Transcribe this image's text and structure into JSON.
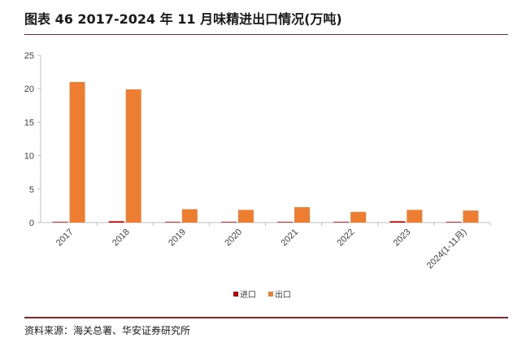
{
  "title": "图表 46   2017-2024 年 11 月味精进出口情况(万吨)",
  "source": "资料来源：海关总署、华安证券研究所",
  "colors": {
    "import": "#c00000",
    "export": "#ed7d31",
    "axis": "#bfbfbf",
    "rule": "#7a2a2a"
  },
  "chart_data": {
    "type": "bar",
    "categories": [
      "2017",
      "2018",
      "2019",
      "2020",
      "2021",
      "2022",
      "2023",
      "2024(1-11月)"
    ],
    "series": [
      {
        "name": "进口",
        "values": [
          0.1,
          0.2,
          0.1,
          0.1,
          0.1,
          0.1,
          0.2,
          0.1
        ]
      },
      {
        "name": "出口",
        "values": [
          21.0,
          19.9,
          2.0,
          1.9,
          2.3,
          1.6,
          1.9,
          1.8
        ]
      }
    ],
    "ylim": [
      0,
      25
    ],
    "yticks": [
      0,
      5,
      10,
      15,
      20,
      25
    ],
    "grid": false,
    "legend": "bottom-center"
  }
}
